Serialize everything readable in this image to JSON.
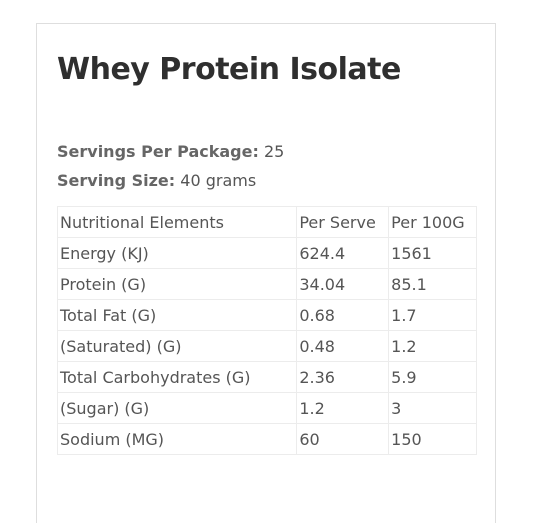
{
  "product": {
    "title": "Whey Protein Isolate"
  },
  "servings": {
    "label": "Servings Per Package:",
    "value": "25"
  },
  "serving_size": {
    "label": "Serving Size:",
    "value": "40 grams"
  },
  "table": {
    "headers": [
      "Nutritional Elements",
      "Per Serve",
      "Per 100G"
    ],
    "rows": [
      [
        "Energy (KJ)",
        "624.4",
        "1561"
      ],
      [
        "Protein (G)",
        "34.04",
        "85.1"
      ],
      [
        "Total Fat (G)",
        "0.68",
        "1.7"
      ],
      [
        "(Saturated) (G)",
        "0.48",
        "1.2"
      ],
      [
        "Total Carbohydrates (G)",
        "2.36",
        "5.9"
      ],
      [
        "(Sugar) (G)",
        "1.2",
        "3"
      ],
      [
        "Sodium (MG)",
        "60",
        "150"
      ]
    ]
  }
}
